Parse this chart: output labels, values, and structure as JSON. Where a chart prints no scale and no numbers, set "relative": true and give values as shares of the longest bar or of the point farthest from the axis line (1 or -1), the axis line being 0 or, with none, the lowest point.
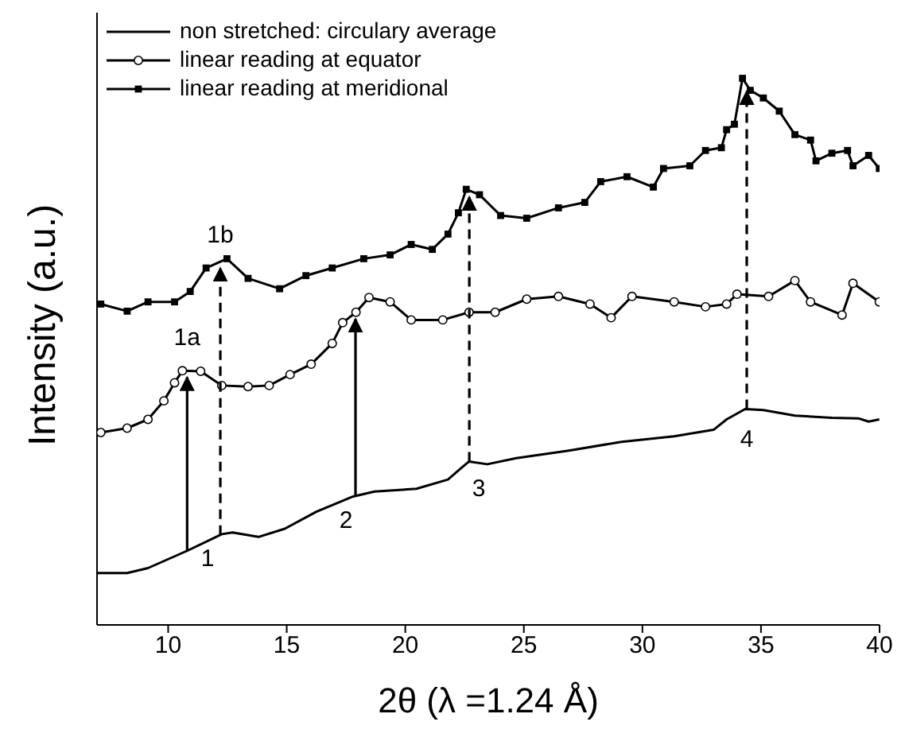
{
  "chart_data": {
    "type": "line",
    "xlabel": "2θ (λ =1.24 Å)",
    "ylabel": "Intensity (a.u.)",
    "relative": true,
    "xlim": [
      7,
      40
    ],
    "xticks": [
      10,
      15,
      20,
      25,
      30,
      35,
      40
    ],
    "legend": "top left",
    "series": [
      {
        "name": "non stretched: circulary average",
        "color": "#000000",
        "marker": "none",
        "x": [
          7.0,
          8.27,
          9.15,
          10.82,
          12.26,
          12.71,
          13.81,
          14.92,
          16.25,
          17.8,
          18.7,
          20.47,
          21.8,
          22.36,
          22.69,
          23.46,
          24.68,
          26.9,
          29.12,
          31.34,
          33.0,
          33.55,
          34.33,
          35.1,
          36.43,
          37.99,
          39.1,
          39.54,
          39.99
        ],
        "values": [
          0.095,
          0.095,
          0.104,
          0.136,
          0.166,
          0.169,
          0.161,
          0.176,
          0.207,
          0.235,
          0.244,
          0.249,
          0.266,
          0.287,
          0.299,
          0.294,
          0.305,
          0.319,
          0.335,
          0.345,
          0.357,
          0.376,
          0.395,
          0.393,
          0.383,
          0.379,
          0.378,
          0.372,
          0.376
        ]
      },
      {
        "name": "linear reading at equator",
        "color": "#000000",
        "marker": "circle",
        "x": [
          7.16,
          8.27,
          9.15,
          9.82,
          10.27,
          10.6,
          11.37,
          12.26,
          13.37,
          14.26,
          15.14,
          16.03,
          16.92,
          17.36,
          17.92,
          18.47,
          19.36,
          20.25,
          21.58,
          22.69,
          23.79,
          25.12,
          26.46,
          27.79,
          28.68,
          29.56,
          31.34,
          32.66,
          33.55,
          33.99,
          35.32,
          36.43,
          37.09,
          38.42,
          38.88,
          39.99
        ],
        "values": [
          0.352,
          0.36,
          0.376,
          0.41,
          0.443,
          0.465,
          0.464,
          0.438,
          0.436,
          0.438,
          0.458,
          0.477,
          0.515,
          0.553,
          0.572,
          0.599,
          0.591,
          0.558,
          0.558,
          0.572,
          0.572,
          0.596,
          0.601,
          0.587,
          0.562,
          0.601,
          0.591,
          0.582,
          0.587,
          0.605,
          0.601,
          0.63,
          0.591,
          0.567,
          0.625,
          0.591
        ]
      },
      {
        "name": "linear reading at meridional",
        "color": "#000000",
        "marker": "square",
        "x": [
          7.16,
          8.27,
          9.15,
          10.27,
          10.93,
          11.6,
          12.48,
          13.37,
          14.7,
          15.81,
          16.92,
          18.25,
          19.36,
          20.25,
          21.14,
          21.8,
          22.24,
          22.57,
          23.13,
          24.02,
          25.12,
          26.46,
          27.57,
          28.24,
          29.35,
          30.46,
          30.89,
          32.0,
          32.66,
          33.33,
          33.55,
          33.88,
          34.22,
          34.55,
          35.1,
          35.77,
          36.43,
          37.09,
          37.32,
          37.99,
          38.65,
          38.88,
          39.54,
          39.99
        ],
        "values": [
          0.587,
          0.574,
          0.591,
          0.591,
          0.61,
          0.653,
          0.67,
          0.634,
          0.615,
          0.639,
          0.653,
          0.67,
          0.677,
          0.696,
          0.687,
          0.715,
          0.754,
          0.797,
          0.787,
          0.749,
          0.744,
          0.763,
          0.773,
          0.811,
          0.82,
          0.801,
          0.835,
          0.84,
          0.868,
          0.873,
          0.906,
          0.916,
          1,
          0.978,
          0.964,
          0.94,
          0.897,
          0.887,
          0.849,
          0.863,
          0.868,
          0.84,
          0.859,
          0.835
        ]
      }
    ],
    "annotations": [
      {
        "text": "1",
        "x": 12.2,
        "y": 0.166
      },
      {
        "text": "2",
        "x": 17.9,
        "y": 0.236
      },
      {
        "text": "3",
        "x": 22.7,
        "y": 0.299
      },
      {
        "text": "4",
        "x": 34.4,
        "y": 0.395
      },
      {
        "text": "1a",
        "x": 10.8,
        "y": 0.465
      },
      {
        "text": "1b",
        "x": 12.2,
        "y": 0.67
      }
    ]
  }
}
